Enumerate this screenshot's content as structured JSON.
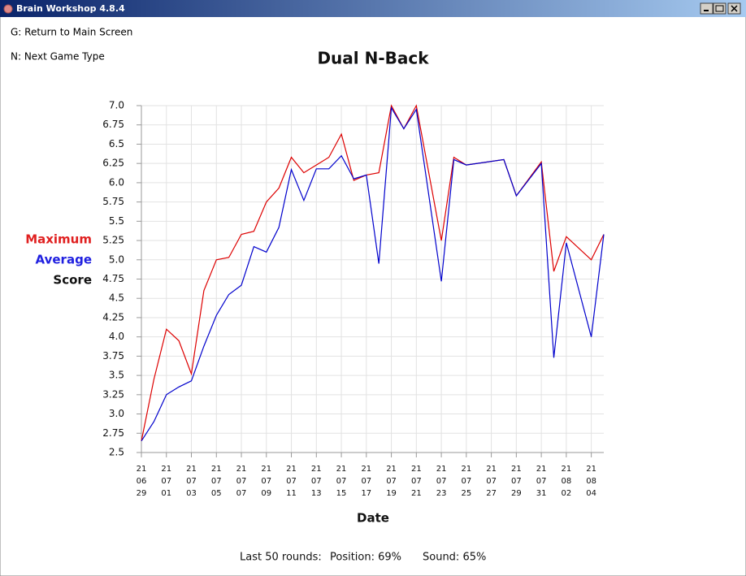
{
  "window": {
    "title": "Brain Workshop 4.8.4"
  },
  "menu": [
    "G: Return to Main Screen",
    "N: Next Game Type"
  ],
  "chart_data": {
    "type": "line",
    "title": "Dual N-Back",
    "x_label": "Date",
    "y_label": "Score",
    "x": [
      "2021-06-29",
      "2021-06-30",
      "2021-07-01",
      "2021-07-02",
      "2021-07-03",
      "2021-07-04",
      "2021-07-05",
      "2021-07-06",
      "2021-07-07",
      "2021-07-08",
      "2021-07-09",
      "2021-07-10",
      "2021-07-11",
      "2021-07-12",
      "2021-07-13",
      "2021-07-14",
      "2021-07-15",
      "2021-07-16",
      "2021-07-17",
      "2021-07-18",
      "2021-07-19",
      "2021-07-20",
      "2021-07-21",
      "2021-07-23",
      "2021-07-24",
      "2021-07-25",
      "2021-07-28",
      "2021-07-29",
      "2021-07-31",
      "2021-08-01",
      "2021-08-02",
      "2021-08-04",
      "2021-08-05"
    ],
    "series": [
      {
        "name": "Maximum",
        "color": "#dd0000",
        "label_color": "#e02020",
        "values": [
          2.65,
          3.45,
          4.1,
          3.95,
          3.52,
          4.6,
          5.0,
          5.03,
          5.33,
          5.37,
          5.75,
          5.93,
          6.33,
          6.13,
          6.23,
          6.33,
          6.63,
          6.03,
          6.1,
          6.13,
          7.0,
          6.7,
          7.0,
          5.25,
          6.33,
          6.23,
          6.3,
          5.83,
          6.27,
          4.85,
          5.3,
          5.0,
          5.33
        ]
      },
      {
        "name": "Average",
        "color": "#0000cc",
        "label_color": "#2020e0",
        "values": [
          2.65,
          2.9,
          3.25,
          3.35,
          3.43,
          3.88,
          4.28,
          4.55,
          4.67,
          5.17,
          5.1,
          5.42,
          6.17,
          5.77,
          6.18,
          6.18,
          6.35,
          6.05,
          6.1,
          4.95,
          6.97,
          6.7,
          6.95,
          4.72,
          6.3,
          6.23,
          6.3,
          5.83,
          6.25,
          3.73,
          5.22,
          4.0,
          5.33
        ]
      }
    ],
    "xlim": [
      "2021-06-29",
      "2021-08-05"
    ],
    "xticks": [
      {
        "value": "2021-06-29",
        "label": [
          "21",
          "06",
          "29"
        ]
      },
      {
        "value": "2021-07-01",
        "label": [
          "21",
          "07",
          "01"
        ]
      },
      {
        "value": "2021-07-03",
        "label": [
          "21",
          "07",
          "03"
        ]
      },
      {
        "value": "2021-07-05",
        "label": [
          "21",
          "07",
          "05"
        ]
      },
      {
        "value": "2021-07-07",
        "label": [
          "21",
          "07",
          "07"
        ]
      },
      {
        "value": "2021-07-09",
        "label": [
          "21",
          "07",
          "09"
        ]
      },
      {
        "value": "2021-07-11",
        "label": [
          "21",
          "07",
          "11"
        ]
      },
      {
        "value": "2021-07-13",
        "label": [
          "21",
          "07",
          "13"
        ]
      },
      {
        "value": "2021-07-15",
        "label": [
          "21",
          "07",
          "15"
        ]
      },
      {
        "value": "2021-07-17",
        "label": [
          "21",
          "07",
          "17"
        ]
      },
      {
        "value": "2021-07-19",
        "label": [
          "21",
          "07",
          "19"
        ]
      },
      {
        "value": "2021-07-21",
        "label": [
          "21",
          "07",
          "21"
        ]
      },
      {
        "value": "2021-07-23",
        "label": [
          "21",
          "07",
          "23"
        ]
      },
      {
        "value": "2021-07-25",
        "label": [
          "21",
          "07",
          "25"
        ]
      },
      {
        "value": "2021-07-27",
        "label": [
          "21",
          "07",
          "27"
        ]
      },
      {
        "value": "2021-07-29",
        "label": [
          "21",
          "07",
          "29"
        ]
      },
      {
        "value": "2021-07-31",
        "label": [
          "21",
          "07",
          "31"
        ]
      },
      {
        "value": "2021-08-02",
        "label": [
          "21",
          "08",
          "02"
        ]
      },
      {
        "value": "2021-08-04",
        "label": [
          "21",
          "08",
          "04"
        ]
      }
    ],
    "ylim": [
      2.5,
      7.0
    ],
    "yticks": [
      2.5,
      {
        "value": 2.75,
        "label": "2.75"
      },
      {
        "value": 3,
        "label": "3.0"
      },
      3.25,
      3.5,
      3.75,
      {
        "value": 4,
        "label": "4.0"
      },
      4.25,
      4.5,
      4.75,
      {
        "value": 5,
        "label": "5.0"
      },
      5.25,
      5.5,
      5.75,
      {
        "value": 6,
        "label": "6.0"
      },
      6.25,
      6.5,
      6.75,
      {
        "value": 7,
        "label": "7.0"
      }
    ],
    "grid": true
  },
  "footer": [
    "Last 50 rounds:",
    "Position: 69%",
    "Sound: 65%"
  ]
}
